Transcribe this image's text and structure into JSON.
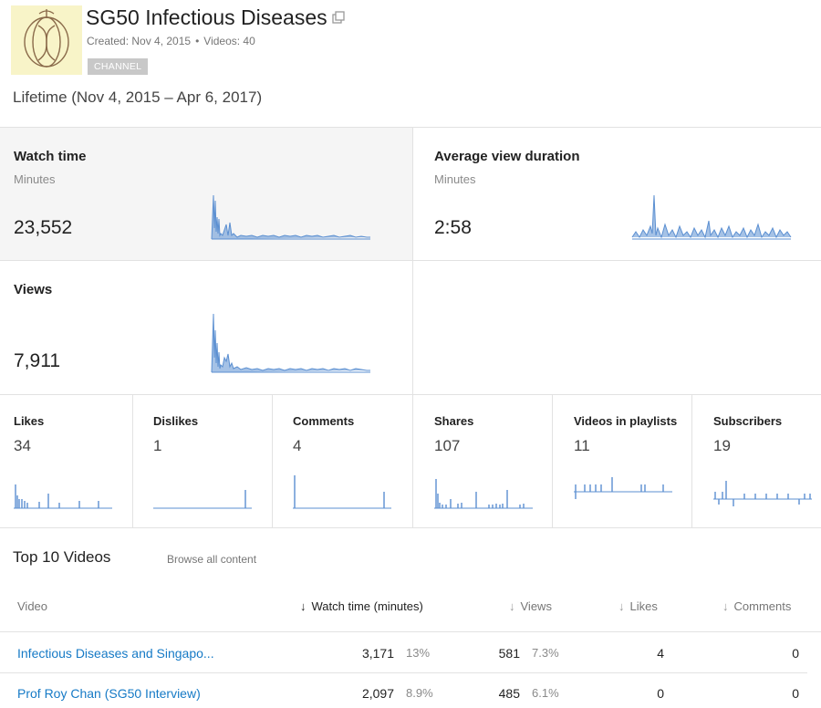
{
  "channel": {
    "title": "SG50 Infectious Diseases",
    "created": "Created: Nov 4, 2015",
    "videos": "Videos: 40",
    "separator": "•",
    "badge": "CHANNEL"
  },
  "date_range": "Lifetime (Nov 4, 2015 – Apr 6, 2017)",
  "metrics_big": [
    {
      "title": "Watch time",
      "unit": "Minutes",
      "value": "23,552"
    },
    {
      "title": "Average view duration",
      "unit": "Minutes",
      "value": "2:58"
    },
    {
      "title": "Views",
      "unit": "",
      "value": "7,911"
    }
  ],
  "metrics_small": [
    {
      "title": "Likes",
      "value": "34"
    },
    {
      "title": "Dislikes",
      "value": "1"
    },
    {
      "title": "Comments",
      "value": "4"
    },
    {
      "title": "Shares",
      "value": "107"
    },
    {
      "title": "Videos in playlists",
      "value": "11"
    },
    {
      "title": "Subscribers",
      "value": "19"
    }
  ],
  "top_videos": {
    "title": "Top 10 Videos",
    "browse_label": "Browse all content",
    "columns": {
      "video": "Video",
      "watch_time": "Watch time (minutes)",
      "views": "Views",
      "likes": "Likes",
      "comments": "Comments"
    },
    "sort_arrow": "↓",
    "rows": [
      {
        "title": "Infectious Diseases and Singapo...",
        "watch_time": "3,171",
        "watch_pct": "13%",
        "views": "581",
        "views_pct": "7.3%",
        "likes": "4",
        "comments": "0"
      },
      {
        "title": "Prof Roy Chan (SG50 Interview)",
        "watch_time": "2,097",
        "watch_pct": "8.9%",
        "views": "485",
        "views_pct": "6.1%",
        "likes": "0",
        "comments": "0"
      }
    ]
  },
  "colors": {
    "spark": "#5b8fd1",
    "link": "#167ac6",
    "selected_bg": "#f5f5f5",
    "logo_bg": "#f8f4c8",
    "logo_line": "#8a6a4a"
  }
}
